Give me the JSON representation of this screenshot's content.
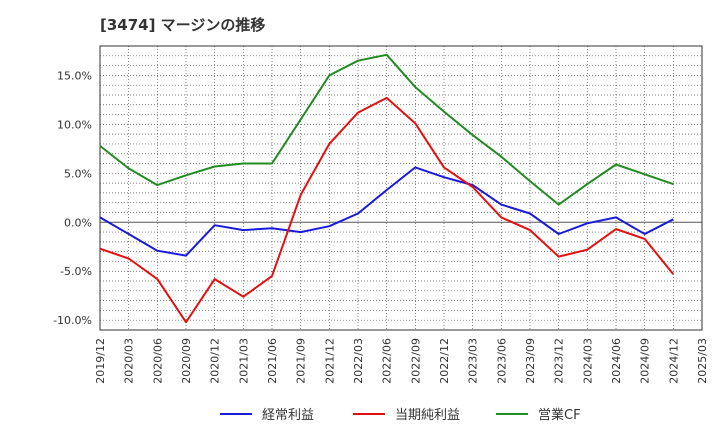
{
  "title": "[3474]  マージンの推移",
  "colors": {
    "series0": "#1a1adb",
    "series1": "#e31010",
    "series2": "#228b22",
    "grid": "#555555",
    "axis": "#333333"
  },
  "chart_data": {
    "type": "line",
    "x": [
      "2019/12",
      "2020/03",
      "2020/06",
      "2020/09",
      "2020/12",
      "2021/03",
      "2021/06",
      "2021/09",
      "2021/12",
      "2022/03",
      "2022/06",
      "2022/09",
      "2022/12",
      "2023/03",
      "2023/06",
      "2023/09",
      "2023/12",
      "2024/03",
      "2024/06",
      "2024/09",
      "2024/12",
      "2025/03"
    ],
    "ylim": [
      -11,
      18
    ],
    "yticks": [
      -10,
      -5,
      0,
      5,
      10,
      15
    ],
    "ytick_labels": [
      "-10.0%",
      "-5.0%",
      "0.0%",
      "5.0%",
      "10.0%",
      "15.0%"
    ],
    "grid": true,
    "legend": "bottom",
    "series": [
      {
        "name": "経常利益",
        "values": [
          0.5,
          -1.2,
          -2.9,
          -3.4,
          -0.3,
          -0.8,
          -0.6,
          -1.0,
          -0.4,
          0.9,
          3.3,
          5.6,
          4.6,
          3.8,
          1.8,
          0.9,
          -1.2,
          -0.1,
          0.5,
          -1.2,
          0.3,
          null
        ]
      },
      {
        "name": "当期純利益",
        "values": [
          -2.7,
          -3.7,
          -5.8,
          -10.2,
          -5.8,
          -7.6,
          -5.5,
          2.8,
          8.0,
          11.2,
          12.7,
          10.1,
          5.6,
          3.6,
          0.5,
          -0.8,
          -3.5,
          -2.8,
          -0.7,
          -1.7,
          -5.3,
          null
        ]
      },
      {
        "name": "営業CF",
        "values": [
          7.8,
          5.5,
          3.8,
          4.8,
          5.7,
          6.0,
          6.0,
          10.5,
          15.0,
          16.5,
          17.1,
          13.8,
          11.3,
          8.9,
          6.7,
          4.2,
          1.8,
          3.9,
          5.9,
          4.9,
          3.9,
          null
        ]
      }
    ]
  }
}
